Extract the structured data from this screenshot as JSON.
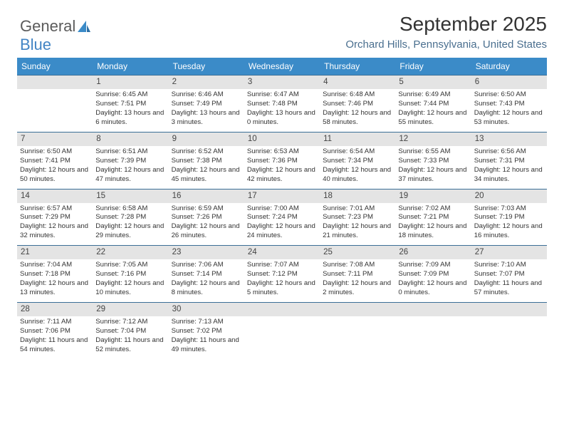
{
  "logo": {
    "text1": "General",
    "text2": "Blue"
  },
  "title": "September 2025",
  "location": "Orchard Hills, Pennsylvania, United States",
  "colors": {
    "header_bg": "#3b8bc8",
    "header_text": "#ffffff",
    "day_head_bg": "#e4e4e4",
    "day_head_border": "#3b6f97",
    "logo_gray": "#5b5b5b",
    "logo_blue": "#4284c4",
    "location_color": "#4a6f8f"
  },
  "daynames": [
    "Sunday",
    "Monday",
    "Tuesday",
    "Wednesday",
    "Thursday",
    "Friday",
    "Saturday"
  ],
  "weeks": [
    [
      null,
      {
        "n": "1",
        "sr": "Sunrise: 6:45 AM",
        "ss": "Sunset: 7:51 PM",
        "dl": "Daylight: 13 hours and 6 minutes."
      },
      {
        "n": "2",
        "sr": "Sunrise: 6:46 AM",
        "ss": "Sunset: 7:49 PM",
        "dl": "Daylight: 13 hours and 3 minutes."
      },
      {
        "n": "3",
        "sr": "Sunrise: 6:47 AM",
        "ss": "Sunset: 7:48 PM",
        "dl": "Daylight: 13 hours and 0 minutes."
      },
      {
        "n": "4",
        "sr": "Sunrise: 6:48 AM",
        "ss": "Sunset: 7:46 PM",
        "dl": "Daylight: 12 hours and 58 minutes."
      },
      {
        "n": "5",
        "sr": "Sunrise: 6:49 AM",
        "ss": "Sunset: 7:44 PM",
        "dl": "Daylight: 12 hours and 55 minutes."
      },
      {
        "n": "6",
        "sr": "Sunrise: 6:50 AM",
        "ss": "Sunset: 7:43 PM",
        "dl": "Daylight: 12 hours and 53 minutes."
      }
    ],
    [
      {
        "n": "7",
        "sr": "Sunrise: 6:50 AM",
        "ss": "Sunset: 7:41 PM",
        "dl": "Daylight: 12 hours and 50 minutes."
      },
      {
        "n": "8",
        "sr": "Sunrise: 6:51 AM",
        "ss": "Sunset: 7:39 PM",
        "dl": "Daylight: 12 hours and 47 minutes."
      },
      {
        "n": "9",
        "sr": "Sunrise: 6:52 AM",
        "ss": "Sunset: 7:38 PM",
        "dl": "Daylight: 12 hours and 45 minutes."
      },
      {
        "n": "10",
        "sr": "Sunrise: 6:53 AM",
        "ss": "Sunset: 7:36 PM",
        "dl": "Daylight: 12 hours and 42 minutes."
      },
      {
        "n": "11",
        "sr": "Sunrise: 6:54 AM",
        "ss": "Sunset: 7:34 PM",
        "dl": "Daylight: 12 hours and 40 minutes."
      },
      {
        "n": "12",
        "sr": "Sunrise: 6:55 AM",
        "ss": "Sunset: 7:33 PM",
        "dl": "Daylight: 12 hours and 37 minutes."
      },
      {
        "n": "13",
        "sr": "Sunrise: 6:56 AM",
        "ss": "Sunset: 7:31 PM",
        "dl": "Daylight: 12 hours and 34 minutes."
      }
    ],
    [
      {
        "n": "14",
        "sr": "Sunrise: 6:57 AM",
        "ss": "Sunset: 7:29 PM",
        "dl": "Daylight: 12 hours and 32 minutes."
      },
      {
        "n": "15",
        "sr": "Sunrise: 6:58 AM",
        "ss": "Sunset: 7:28 PM",
        "dl": "Daylight: 12 hours and 29 minutes."
      },
      {
        "n": "16",
        "sr": "Sunrise: 6:59 AM",
        "ss": "Sunset: 7:26 PM",
        "dl": "Daylight: 12 hours and 26 minutes."
      },
      {
        "n": "17",
        "sr": "Sunrise: 7:00 AM",
        "ss": "Sunset: 7:24 PM",
        "dl": "Daylight: 12 hours and 24 minutes."
      },
      {
        "n": "18",
        "sr": "Sunrise: 7:01 AM",
        "ss": "Sunset: 7:23 PM",
        "dl": "Daylight: 12 hours and 21 minutes."
      },
      {
        "n": "19",
        "sr": "Sunrise: 7:02 AM",
        "ss": "Sunset: 7:21 PM",
        "dl": "Daylight: 12 hours and 18 minutes."
      },
      {
        "n": "20",
        "sr": "Sunrise: 7:03 AM",
        "ss": "Sunset: 7:19 PM",
        "dl": "Daylight: 12 hours and 16 minutes."
      }
    ],
    [
      {
        "n": "21",
        "sr": "Sunrise: 7:04 AM",
        "ss": "Sunset: 7:18 PM",
        "dl": "Daylight: 12 hours and 13 minutes."
      },
      {
        "n": "22",
        "sr": "Sunrise: 7:05 AM",
        "ss": "Sunset: 7:16 PM",
        "dl": "Daylight: 12 hours and 10 minutes."
      },
      {
        "n": "23",
        "sr": "Sunrise: 7:06 AM",
        "ss": "Sunset: 7:14 PM",
        "dl": "Daylight: 12 hours and 8 minutes."
      },
      {
        "n": "24",
        "sr": "Sunrise: 7:07 AM",
        "ss": "Sunset: 7:12 PM",
        "dl": "Daylight: 12 hours and 5 minutes."
      },
      {
        "n": "25",
        "sr": "Sunrise: 7:08 AM",
        "ss": "Sunset: 7:11 PM",
        "dl": "Daylight: 12 hours and 2 minutes."
      },
      {
        "n": "26",
        "sr": "Sunrise: 7:09 AM",
        "ss": "Sunset: 7:09 PM",
        "dl": "Daylight: 12 hours and 0 minutes."
      },
      {
        "n": "27",
        "sr": "Sunrise: 7:10 AM",
        "ss": "Sunset: 7:07 PM",
        "dl": "Daylight: 11 hours and 57 minutes."
      }
    ],
    [
      {
        "n": "28",
        "sr": "Sunrise: 7:11 AM",
        "ss": "Sunset: 7:06 PM",
        "dl": "Daylight: 11 hours and 54 minutes."
      },
      {
        "n": "29",
        "sr": "Sunrise: 7:12 AM",
        "ss": "Sunset: 7:04 PM",
        "dl": "Daylight: 11 hours and 52 minutes."
      },
      {
        "n": "30",
        "sr": "Sunrise: 7:13 AM",
        "ss": "Sunset: 7:02 PM",
        "dl": "Daylight: 11 hours and 49 minutes."
      },
      null,
      null,
      null,
      null
    ]
  ]
}
